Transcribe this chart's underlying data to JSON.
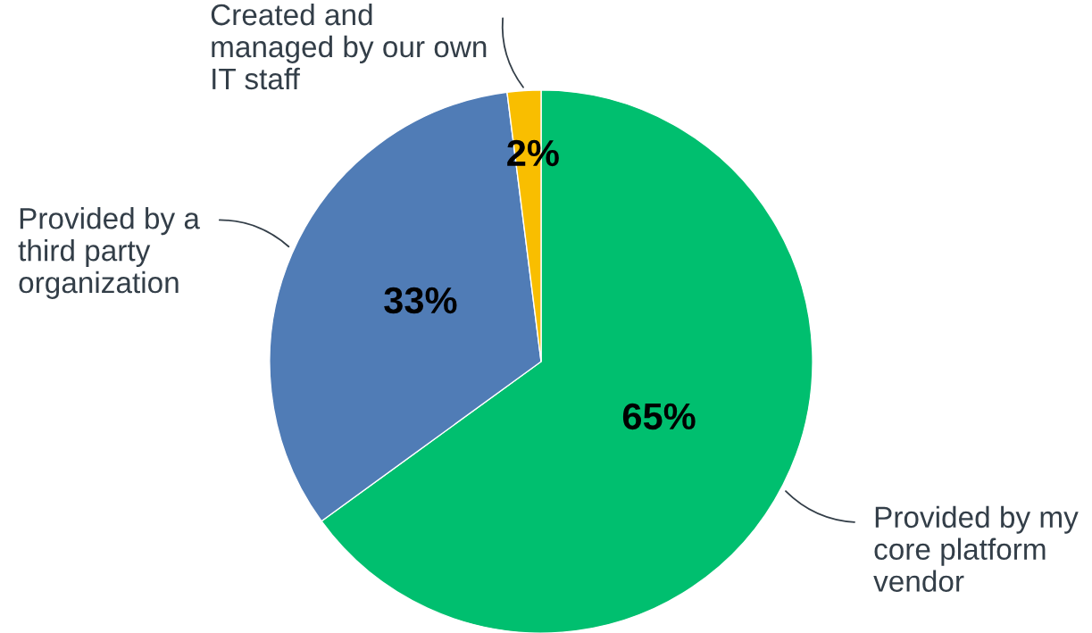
{
  "chart_data": {
    "type": "pie",
    "categories": [
      "Provided by my\ncore platform\nvendor",
      "Provided by a\nthird party\norganization",
      "Created and\nmanaged by our own\nIT staff"
    ],
    "values": [
      65,
      33,
      2
    ],
    "value_labels": [
      "65%",
      "33%",
      "2%"
    ],
    "colors": [
      "#00bf6f",
      "#507cb6",
      "#f9be00"
    ],
    "legend": false
  }
}
